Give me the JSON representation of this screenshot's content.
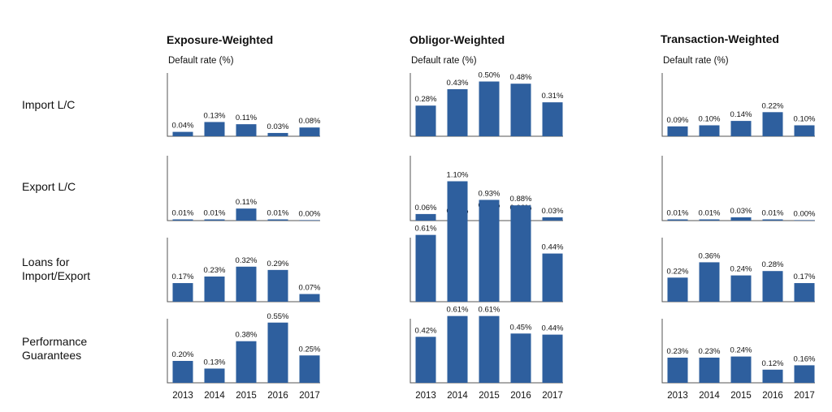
{
  "chart_data": {
    "type": "bar",
    "categories": [
      "2013",
      "2014",
      "2015",
      "2016",
      "2017"
    ],
    "ylabel": "Default rate (%)",
    "grid": false,
    "columns": [
      {
        "title": "Exposure-Weighted",
        "ylabel": "Default rate (%)"
      },
      {
        "title": "Obligor-Weighted",
        "ylabel": "Default rate (%)"
      },
      {
        "title": "Transaction-Weighted",
        "ylabel": "Default rate (%)"
      }
    ],
    "rows": [
      {
        "label_lines": [
          "Import L/C"
        ],
        "panels": [
          {
            "values": [
              0.04,
              0.13,
              0.11,
              0.03,
              0.08
            ],
            "labels": [
              "0.04%",
              "0.13%",
              "0.11%",
              "0.03%",
              "0.08%"
            ]
          },
          {
            "values": [
              0.28,
              0.43,
              0.5,
              0.48,
              0.31
            ],
            "labels": [
              "0.28%",
              "0.43%",
              "0.50%",
              "0.48%",
              "0.31%"
            ]
          },
          {
            "values": [
              0.09,
              0.1,
              0.14,
              0.22,
              0.1
            ],
            "labels": [
              "0.09%",
              "0.10%",
              "0.14%",
              "0.22%",
              "0.10%"
            ]
          }
        ]
      },
      {
        "label_lines": [
          "Export L/C"
        ],
        "panels": [
          {
            "values": [
              0.01,
              0.01,
              0.11,
              0.01,
              0.0
            ],
            "labels": [
              "0.01%",
              "0.01%",
              "0.11%",
              "0.01%",
              "0.00%"
            ]
          },
          {
            "values": [
              0.06,
              0.03,
              0.08,
              0.06,
              0.03
            ],
            "labels": [
              "0.06%",
              "0.03%",
              "0.08%",
              "0.06%",
              "0.03%"
            ]
          },
          {
            "values": [
              0.01,
              0.01,
              0.03,
              0.01,
              0.0
            ],
            "labels": [
              "0.01%",
              "0.01%",
              "0.03%",
              "0.01%",
              "0.00%"
            ]
          }
        ]
      },
      {
        "label_lines": [
          "Loans for",
          "Import/Export"
        ],
        "panels": [
          {
            "values": [
              0.17,
              0.23,
              0.32,
              0.29,
              0.07
            ],
            "labels": [
              "0.17%",
              "0.23%",
              "0.32%",
              "0.29%",
              "0.07%"
            ]
          },
          {
            "values": [
              0.61,
              1.1,
              0.93,
              0.88,
              0.44
            ],
            "labels": [
              "0.61%",
              "1.10%",
              "0.93%",
              "0.88%",
              "0.44%"
            ]
          },
          {
            "values": [
              0.22,
              0.36,
              0.24,
              0.28,
              0.17
            ],
            "labels": [
              "0.22%",
              "0.36%",
              "0.24%",
              "0.28%",
              "0.17%"
            ]
          }
        ]
      },
      {
        "label_lines": [
          "Performance",
          "Guarantees"
        ],
        "panels": [
          {
            "values": [
              0.2,
              0.13,
              0.38,
              0.55,
              0.25
            ],
            "labels": [
              "0.20%",
              "0.13%",
              "0.38%",
              "0.55%",
              "0.25%"
            ]
          },
          {
            "values": [
              0.42,
              0.61,
              0.61,
              0.45,
              0.44
            ],
            "labels": [
              "0.42%",
              "0.61%",
              "0.61%",
              "0.45%",
              "0.44%"
            ]
          },
          {
            "values": [
              0.23,
              0.23,
              0.24,
              0.12,
              0.16
            ],
            "labels": [
              "0.23%",
              "0.23%",
              "0.24%",
              "0.12%",
              "0.16%"
            ]
          }
        ]
      }
    ],
    "bar_color": "#2e5f9e"
  }
}
